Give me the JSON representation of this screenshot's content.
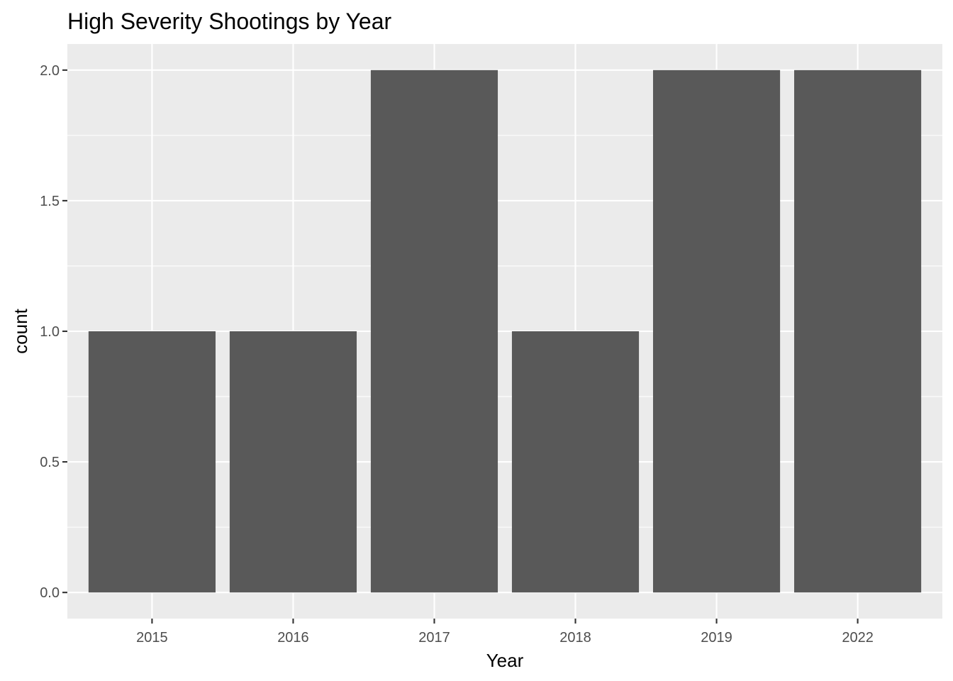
{
  "chart_data": {
    "type": "bar",
    "title": "High Severity Shootings by Year",
    "xlabel": "Year",
    "ylabel": "count",
    "categories": [
      "2015",
      "2016",
      "2017",
      "2018",
      "2019",
      "2022"
    ],
    "values": [
      1,
      1,
      2,
      1,
      2,
      2
    ],
    "ylim": [
      -0.1,
      2.1
    ],
    "yticks": [
      0.0,
      0.5,
      1.0,
      1.5,
      2.0
    ],
    "ytick_labels": [
      "0.0",
      "0.5",
      "1.0",
      "1.5",
      "2.0"
    ],
    "grid": true,
    "legend": "none",
    "colors": {
      "bar": "#595959",
      "panel": "#ebebeb",
      "grid": "#ffffff",
      "tick_text": "#4d4d4d"
    }
  }
}
